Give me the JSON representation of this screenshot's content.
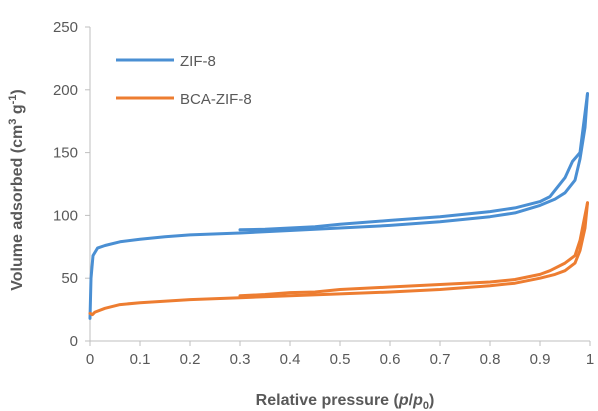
{
  "chart_data": {
    "type": "line",
    "title": "",
    "xlabel": {
      "prefix": "Relative pressure (",
      "p": "p",
      "slash": "/",
      "p0": "p",
      "p0_sub": "0",
      "suffix": ")"
    },
    "ylabel": {
      "prefix": "Volume adsorbed (cm",
      "sup3": "3",
      "mid": " g",
      "supneg1": "-1",
      "suffix": ")"
    },
    "xlim": [
      0,
      1
    ],
    "ylim": [
      0,
      250
    ],
    "xticks": [
      "0",
      "0.1",
      "0.2",
      "0.3",
      "0.4",
      "0.5",
      "0.6",
      "0.7",
      "0.8",
      "0.9",
      "1"
    ],
    "yticks": [
      "0",
      "50",
      "100",
      "150",
      "200",
      "250"
    ],
    "grid": false,
    "legend_position": "top-left",
    "series": [
      {
        "name": "ZIF-8",
        "color": "#4a8fd3",
        "adsorption": [
          [
            0.0,
            18
          ],
          [
            0.002,
            50
          ],
          [
            0.006,
            68
          ],
          [
            0.015,
            74
          ],
          [
            0.03,
            76
          ],
          [
            0.06,
            79
          ],
          [
            0.1,
            81
          ],
          [
            0.15,
            83
          ],
          [
            0.2,
            84.5
          ],
          [
            0.3,
            86
          ],
          [
            0.4,
            88
          ],
          [
            0.5,
            90
          ],
          [
            0.6,
            92
          ],
          [
            0.7,
            95
          ],
          [
            0.8,
            99
          ],
          [
            0.85,
            102
          ],
          [
            0.9,
            108
          ],
          [
            0.93,
            113
          ],
          [
            0.95,
            118
          ],
          [
            0.97,
            128
          ],
          [
            0.98,
            145
          ],
          [
            0.99,
            170
          ],
          [
            0.995,
            197
          ]
        ],
        "desorption": [
          [
            0.995,
            197
          ],
          [
            0.98,
            150
          ],
          [
            0.965,
            143
          ],
          [
            0.95,
            130
          ],
          [
            0.92,
            115
          ],
          [
            0.9,
            111
          ],
          [
            0.85,
            106
          ],
          [
            0.8,
            103
          ],
          [
            0.7,
            99
          ],
          [
            0.6,
            96
          ],
          [
            0.5,
            93
          ],
          [
            0.45,
            91
          ],
          [
            0.4,
            90
          ],
          [
            0.35,
            89
          ],
          [
            0.3,
            88.5
          ]
        ]
      },
      {
        "name": "BCA-ZIF-8",
        "color": "#ed7d31",
        "adsorption": [
          [
            0.0,
            22
          ],
          [
            0.005,
            21
          ],
          [
            0.01,
            23
          ],
          [
            0.03,
            26
          ],
          [
            0.06,
            29
          ],
          [
            0.1,
            30.5
          ],
          [
            0.2,
            33
          ],
          [
            0.3,
            34.5
          ],
          [
            0.4,
            36
          ],
          [
            0.5,
            37.5
          ],
          [
            0.6,
            39
          ],
          [
            0.7,
            41
          ],
          [
            0.8,
            44
          ],
          [
            0.85,
            46
          ],
          [
            0.9,
            50
          ],
          [
            0.93,
            53
          ],
          [
            0.95,
            56
          ],
          [
            0.97,
            62
          ],
          [
            0.98,
            72
          ],
          [
            0.99,
            90
          ],
          [
            0.995,
            110
          ]
        ],
        "desorption": [
          [
            0.995,
            110
          ],
          [
            0.98,
            80
          ],
          [
            0.97,
            68
          ],
          [
            0.95,
            62
          ],
          [
            0.92,
            56
          ],
          [
            0.9,
            53
          ],
          [
            0.85,
            49
          ],
          [
            0.8,
            47
          ],
          [
            0.7,
            45
          ],
          [
            0.6,
            43
          ],
          [
            0.5,
            41
          ],
          [
            0.45,
            39
          ],
          [
            0.4,
            38.5
          ],
          [
            0.35,
            37
          ],
          [
            0.3,
            36
          ]
        ]
      }
    ]
  }
}
